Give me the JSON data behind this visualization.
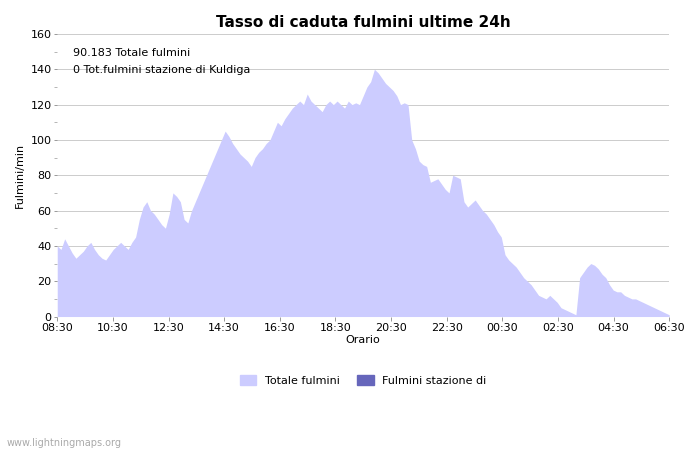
{
  "title": "Tasso di caduta fulmini ultime 24h",
  "ylabel": "Fulmini/min",
  "xlabel": "Orario",
  "annotation_line1": "90.183 Totale fulmini",
  "annotation_line2": "0 Tot.fulmini stazione di Kuldiga",
  "fill_color": "#ccccff",
  "fill_color2": "#6666bb",
  "line_color": "#aaaadd",
  "ylim": [
    0,
    160
  ],
  "yticks": [
    0,
    20,
    40,
    60,
    80,
    100,
    120,
    140,
    160
  ],
  "xtick_labels": [
    "08:30",
    "10:30",
    "12:30",
    "14:30",
    "16:30",
    "18:30",
    "20:30",
    "22:30",
    "00:30",
    "02:30",
    "04:30",
    "06:30"
  ],
  "watermark": "www.lightningmaps.org",
  "legend_totale": "Totale fulmini",
  "legend_stazione": "Fulmini stazione di",
  "y_values": [
    40,
    38,
    44,
    40,
    36,
    33,
    35,
    37,
    40,
    42,
    38,
    35,
    33,
    32,
    35,
    38,
    40,
    42,
    40,
    38,
    42,
    45,
    55,
    62,
    65,
    60,
    58,
    55,
    52,
    50,
    58,
    70,
    68,
    65,
    55,
    53,
    60,
    65,
    70,
    75,
    80,
    85,
    90,
    95,
    100,
    105,
    102,
    98,
    95,
    92,
    90,
    88,
    85,
    90,
    93,
    95,
    98,
    100,
    105,
    110,
    108,
    112,
    115,
    118,
    120,
    122,
    120,
    126,
    122,
    120,
    118,
    116,
    120,
    122,
    120,
    122,
    120,
    118,
    122,
    120,
    121,
    120,
    125,
    130,
    133,
    140,
    138,
    135,
    132,
    130,
    128,
    125,
    120,
    121,
    120,
    100,
    95,
    88,
    86,
    85,
    76,
    77,
    78,
    75,
    72,
    70,
    80,
    79,
    78,
    65,
    62,
    64,
    66,
    63,
    60,
    58,
    55,
    52,
    48,
    45,
    35,
    32,
    30,
    28,
    25,
    22,
    20,
    18,
    15,
    12,
    11,
    10,
    12,
    10,
    8,
    5,
    4,
    3,
    2,
    1,
    22,
    25,
    28,
    30,
    29,
    27,
    24,
    22,
    18,
    15,
    14,
    14,
    12,
    11,
    10,
    10,
    9,
    8,
    7,
    6,
    5,
    4,
    3,
    2,
    1
  ]
}
